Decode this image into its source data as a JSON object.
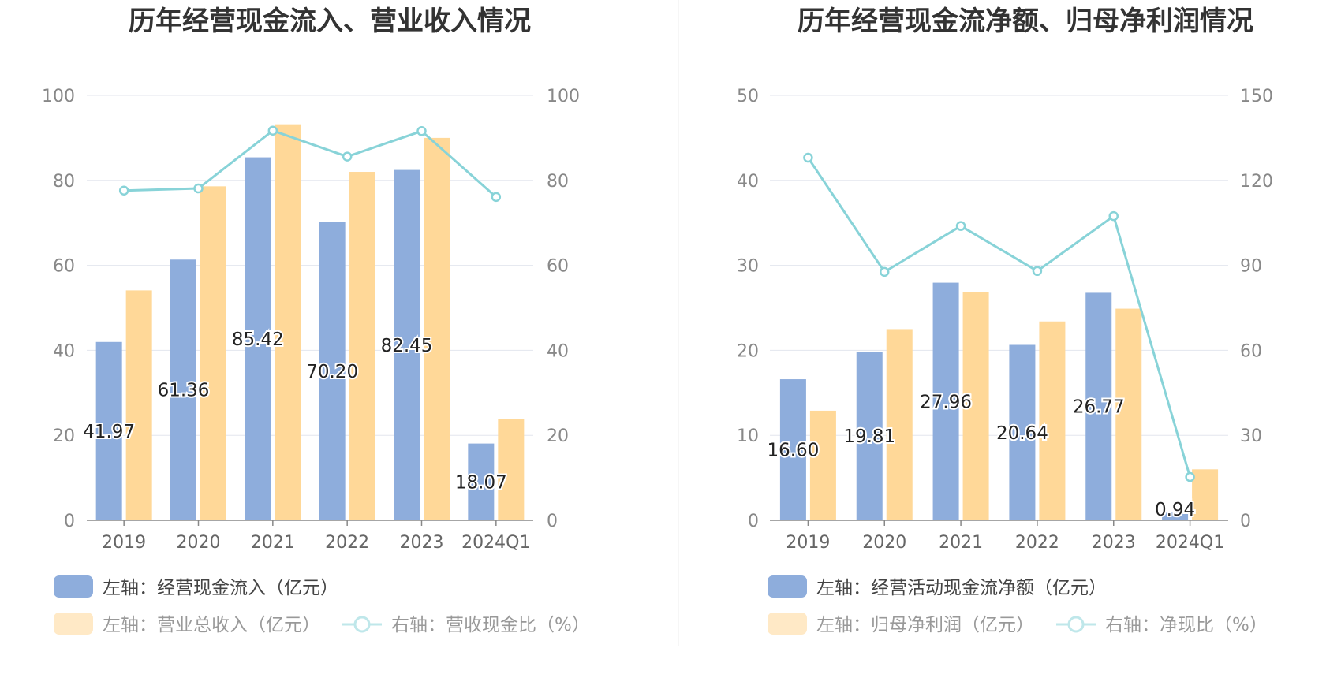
{
  "chart_data": [
    {
      "type": "bar+line",
      "title": "历年经营现金流入、营业收入情况",
      "categories": [
        "2019",
        "2020",
        "2021",
        "2022",
        "2023",
        "2024Q1"
      ],
      "left_axis": {
        "min": 0,
        "max": 100,
        "ticks": [
          "0",
          "20",
          "40",
          "60",
          "80",
          "100"
        ]
      },
      "right_axis": {
        "min": 0,
        "max": 100,
        "ticks": [
          "0",
          "20",
          "40",
          "60",
          "80",
          "100"
        ]
      },
      "series": [
        {
          "name": "左轴：经营现金流入（亿元）",
          "type": "bar",
          "axis": "left",
          "color": "#8EADDC",
          "values": [
            41.97,
            61.36,
            85.42,
            70.2,
            82.45,
            18.07
          ],
          "labels": [
            "41.97",
            "61.36",
            "85.42",
            "70.20",
            "82.45",
            "18.07"
          ]
        },
        {
          "name": "左轴：营业总收入（亿元）",
          "type": "bar",
          "axis": "left",
          "color": "#FFD898",
          "values": [
            54.1,
            78.6,
            93.2,
            82.0,
            90.0,
            23.8
          ]
        },
        {
          "name": "右轴：营收现金比（%）",
          "type": "line",
          "axis": "right",
          "color": "#88D3D8",
          "values": [
            77.6,
            78.1,
            91.7,
            85.6,
            91.6,
            76.1
          ]
        }
      ]
    },
    {
      "type": "bar+line",
      "title": "历年经营现金流净额、归母净利润情况",
      "categories": [
        "2019",
        "2020",
        "2021",
        "2022",
        "2023",
        "2024Q1"
      ],
      "left_axis": {
        "min": 0,
        "max": 50,
        "ticks": [
          "0",
          "10",
          "20",
          "30",
          "40",
          "50"
        ]
      },
      "right_axis": {
        "min": 0,
        "max": 150,
        "ticks": [
          "0",
          "30",
          "60",
          "90",
          "120",
          "150"
        ]
      },
      "series": [
        {
          "name": "左轴：经营活动现金流净额（亿元）",
          "type": "bar",
          "axis": "left",
          "color": "#8EADDC",
          "values": [
            16.6,
            19.81,
            27.96,
            20.64,
            26.77,
            0.94
          ],
          "labels": [
            "16.60",
            "19.81",
            "27.96",
            "20.64",
            "26.77",
            "0.94"
          ]
        },
        {
          "name": "左轴：归母净利润（亿元）",
          "type": "bar",
          "axis": "left",
          "color": "#FFD898",
          "values": [
            12.9,
            22.5,
            26.9,
            23.4,
            24.9,
            6.0
          ]
        },
        {
          "name": "右轴：净现比（%）",
          "type": "line",
          "axis": "right",
          "color": "#88D3D8",
          "values": [
            128.0,
            87.7,
            103.9,
            88.0,
            107.4,
            15.3
          ]
        }
      ]
    }
  ],
  "colors": {
    "bar_primary": "#8EADDC",
    "bar_secondary": "#FFD898",
    "line": "#88D3D8",
    "legend_secondary_faded": "#FFE9C6",
    "legend_line_faded": "#BFE7EA",
    "grid": "#E3E6EE",
    "axis": "#888888",
    "divider": "#EEEEEE"
  }
}
